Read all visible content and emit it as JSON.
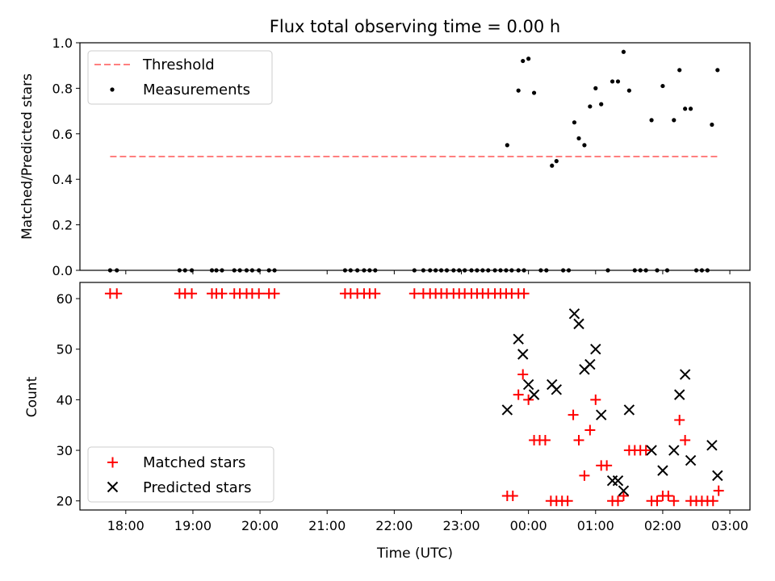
{
  "chart_data": [
    {
      "type": "scatter",
      "title": "Flux total observing time = 0.00 h",
      "xlabel": "",
      "ylabel": "Matched/Predicted stars",
      "xlim": [
        "17:19",
        "03:18"
      ],
      "ylim": [
        0,
        1.0
      ],
      "yticks": [
        0.0,
        0.2,
        0.4,
        0.6,
        0.8,
        1.0
      ],
      "ytick_labels": [
        "0.0",
        "0.2",
        "0.4",
        "0.6",
        "0.8",
        "1.0"
      ],
      "legend_position": "upper left",
      "threshold": {
        "name": "Threshold",
        "y": 0.5,
        "x": [
          "17:46",
          "02:49"
        ],
        "color": "#ff7f7f",
        "style": "dashed"
      },
      "measurements": {
        "name": "Measurements",
        "color": "#000000",
        "points": [
          [
            "17:46",
            0
          ],
          [
            "17:52",
            0
          ],
          [
            "18:48",
            0
          ],
          [
            "18:53",
            0
          ],
          [
            "18:59",
            0
          ],
          [
            "19:17",
            0
          ],
          [
            "19:21",
            0
          ],
          [
            "19:26",
            0
          ],
          [
            "19:37",
            0
          ],
          [
            "19:42",
            0
          ],
          [
            "19:48",
            0
          ],
          [
            "19:53",
            0
          ],
          [
            "19:59",
            0
          ],
          [
            "20:08",
            0
          ],
          [
            "20:13",
            0
          ],
          [
            "21:16",
            0
          ],
          [
            "21:21",
            0
          ],
          [
            "21:27",
            0
          ],
          [
            "21:33",
            0
          ],
          [
            "21:38",
            0
          ],
          [
            "21:43",
            0
          ],
          [
            "22:18",
            0
          ],
          [
            "22:26",
            0
          ],
          [
            "22:32",
            0
          ],
          [
            "22:37",
            0
          ],
          [
            "22:42",
            0
          ],
          [
            "22:47",
            0
          ],
          [
            "22:53",
            0
          ],
          [
            "22:58",
            0
          ],
          [
            "23:03",
            0
          ],
          [
            "23:09",
            0
          ],
          [
            "23:14",
            0
          ],
          [
            "23:19",
            0
          ],
          [
            "23:24",
            0
          ],
          [
            "23:30",
            0
          ],
          [
            "23:35",
            0
          ],
          [
            "23:40",
            0
          ],
          [
            "23:45",
            0
          ],
          [
            "23:51",
            0
          ],
          [
            "23:56",
            0
          ],
          [
            "23:41",
            0.55
          ],
          [
            "23:51",
            0.79
          ],
          [
            "23:55",
            0.92
          ],
          [
            "00:00",
            0.93
          ],
          [
            "00:05",
            0.78
          ],
          [
            "00:11",
            0
          ],
          [
            "00:16",
            0
          ],
          [
            "00:21",
            0.46
          ],
          [
            "00:25",
            0.48
          ],
          [
            "00:31",
            0
          ],
          [
            "00:36",
            0
          ],
          [
            "00:41",
            0.65
          ],
          [
            "00:45",
            0.58
          ],
          [
            "00:50",
            0.55
          ],
          [
            "00:55",
            0.72
          ],
          [
            "01:00",
            0.8
          ],
          [
            "01:05",
            0.73
          ],
          [
            "01:11",
            0
          ],
          [
            "01:15",
            0.83
          ],
          [
            "01:20",
            0.83
          ],
          [
            "01:25",
            0.96
          ],
          [
            "01:30",
            0.79
          ],
          [
            "01:35",
            0
          ],
          [
            "01:40",
            0
          ],
          [
            "01:45",
            0
          ],
          [
            "01:50",
            0.66
          ],
          [
            "01:55",
            0
          ],
          [
            "02:00",
            0.81
          ],
          [
            "02:04",
            0
          ],
          [
            "02:10",
            0.66
          ],
          [
            "02:15",
            0.88
          ],
          [
            "02:20",
            0.71
          ],
          [
            "02:25",
            0.71
          ],
          [
            "02:30",
            0
          ],
          [
            "02:35",
            0
          ],
          [
            "02:40",
            0
          ],
          [
            "02:44",
            0.64
          ],
          [
            "02:49",
            0.88
          ]
        ]
      }
    },
    {
      "type": "scatter",
      "title": "",
      "xlabel": "Time (UTC)",
      "ylabel": "Count",
      "xlim": [
        "17:19",
        "03:18"
      ],
      "ylim": [
        18.2,
        63.2
      ],
      "yticks": [
        20,
        30,
        40,
        50,
        60
      ],
      "ytick_labels": [
        "20",
        "30",
        "40",
        "50",
        "60"
      ],
      "xticks": [
        "18:00",
        "19:00",
        "20:00",
        "21:00",
        "22:00",
        "23:00",
        "00:00",
        "01:00",
        "02:00",
        "03:00"
      ],
      "legend_position": "lower left",
      "series": [
        {
          "name": "Matched stars",
          "marker": "plus",
          "color": "#ff0000",
          "points": [
            [
              "17:46",
              61
            ],
            [
              "17:52",
              61
            ],
            [
              "18:48",
              61
            ],
            [
              "18:53",
              61
            ],
            [
              "18:59",
              61
            ],
            [
              "19:17",
              61
            ],
            [
              "19:21",
              61
            ],
            [
              "19:26",
              61
            ],
            [
              "19:37",
              61
            ],
            [
              "19:42",
              61
            ],
            [
              "19:48",
              61
            ],
            [
              "19:53",
              61
            ],
            [
              "19:59",
              61
            ],
            [
              "20:08",
              61
            ],
            [
              "20:13",
              61
            ],
            [
              "21:16",
              61
            ],
            [
              "21:21",
              61
            ],
            [
              "21:27",
              61
            ],
            [
              "21:33",
              61
            ],
            [
              "21:38",
              61
            ],
            [
              "21:43",
              61
            ],
            [
              "22:18",
              61
            ],
            [
              "22:26",
              61
            ],
            [
              "22:32",
              61
            ],
            [
              "22:37",
              61
            ],
            [
              "22:42",
              61
            ],
            [
              "22:47",
              61
            ],
            [
              "22:53",
              61
            ],
            [
              "22:58",
              61
            ],
            [
              "23:03",
              61
            ],
            [
              "23:09",
              61
            ],
            [
              "23:14",
              61
            ],
            [
              "23:19",
              61
            ],
            [
              "23:24",
              61
            ],
            [
              "23:30",
              61
            ],
            [
              "23:35",
              61
            ],
            [
              "23:40",
              61
            ],
            [
              "23:45",
              61
            ],
            [
              "23:51",
              61
            ],
            [
              "23:56",
              61
            ],
            [
              "23:41",
              21
            ],
            [
              "23:46",
              21
            ],
            [
              "23:51",
              41
            ],
            [
              "23:55",
              45
            ],
            [
              "00:00",
              40
            ],
            [
              "00:05",
              32
            ],
            [
              "00:10",
              32
            ],
            [
              "00:15",
              32
            ],
            [
              "00:20",
              20
            ],
            [
              "00:25",
              20
            ],
            [
              "00:30",
              20
            ],
            [
              "00:35",
              20
            ],
            [
              "00:40",
              37
            ],
            [
              "00:45",
              32
            ],
            [
              "00:50",
              25
            ],
            [
              "00:55",
              34
            ],
            [
              "01:00",
              40
            ],
            [
              "01:05",
              27
            ],
            [
              "01:10",
              27
            ],
            [
              "01:15",
              20
            ],
            [
              "01:20",
              20
            ],
            [
              "01:25",
              21
            ],
            [
              "01:30",
              30
            ],
            [
              "01:35",
              30
            ],
            [
              "01:40",
              30
            ],
            [
              "01:45",
              30
            ],
            [
              "01:50",
              20
            ],
            [
              "01:55",
              20
            ],
            [
              "02:00",
              21
            ],
            [
              "02:05",
              21
            ],
            [
              "02:10",
              20
            ],
            [
              "02:15",
              36
            ],
            [
              "02:20",
              32
            ],
            [
              "02:25",
              20
            ],
            [
              "02:30",
              20
            ],
            [
              "02:35",
              20
            ],
            [
              "02:40",
              20
            ],
            [
              "02:45",
              20
            ],
            [
              "02:50",
              22
            ]
          ]
        },
        {
          "name": "Predicted stars",
          "marker": "x",
          "color": "#000000",
          "points": [
            [
              "23:41",
              38
            ],
            [
              "23:51",
              52
            ],
            [
              "23:55",
              49
            ],
            [
              "00:00",
              43
            ],
            [
              "00:05",
              41
            ],
            [
              "00:21",
              43
            ],
            [
              "00:25",
              42
            ],
            [
              "00:41",
              57
            ],
            [
              "00:45",
              55
            ],
            [
              "00:50",
              46
            ],
            [
              "00:55",
              47
            ],
            [
              "01:00",
              50
            ],
            [
              "01:05",
              37
            ],
            [
              "01:15",
              24
            ],
            [
              "01:20",
              24
            ],
            [
              "01:25",
              22
            ],
            [
              "01:30",
              38
            ],
            [
              "01:50",
              30
            ],
            [
              "02:00",
              26
            ],
            [
              "02:10",
              30
            ],
            [
              "02:15",
              41
            ],
            [
              "02:20",
              45
            ],
            [
              "02:25",
              28
            ],
            [
              "02:44",
              31
            ],
            [
              "02:49",
              25
            ]
          ]
        }
      ]
    }
  ]
}
